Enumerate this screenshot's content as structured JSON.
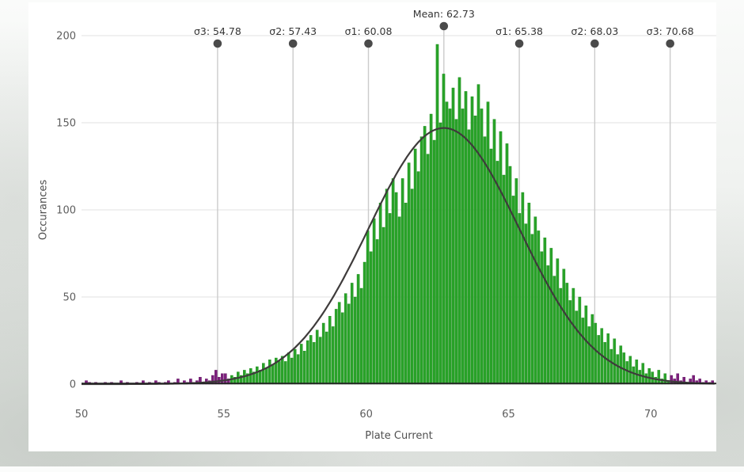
{
  "chart_data": {
    "type": "bar",
    "subtype": "histogram-with-gaussian-fit",
    "title": "",
    "xlabel": "Plate Current",
    "ylabel": "Occurances",
    "xlim": [
      50,
      72.3
    ],
    "ylim": [
      0,
      200
    ],
    "x_ticks": [
      50,
      55,
      60,
      65,
      70
    ],
    "y_ticks": [
      0,
      50,
      100,
      150,
      200
    ],
    "grid": "horizontal",
    "legend": "none",
    "histogram": {
      "start": 50.0,
      "bin_width": 0.11111,
      "bar_color": "#29a329",
      "bar_edge_color": "#1b8a1b",
      "outlier_color": "#7d1f7d",
      "outlier_edge_color": "#5e145e",
      "outlier_below": 55.2,
      "outlier_above": 70.7,
      "counts": [
        0,
        2,
        1,
        0,
        1,
        0,
        0,
        1,
        0,
        1,
        0,
        0,
        2,
        0,
        1,
        0,
        0,
        1,
        0,
        2,
        0,
        1,
        0,
        2,
        1,
        0,
        1,
        2,
        0,
        1,
        3,
        0,
        2,
        1,
        3,
        1,
        2,
        4,
        1,
        3,
        2,
        5,
        8,
        4,
        6,
        6,
        3,
        5,
        4,
        7,
        5,
        8,
        6,
        9,
        7,
        10,
        8,
        12,
        9,
        14,
        11,
        15,
        13,
        16,
        13,
        18,
        15,
        20,
        17,
        23,
        19,
        25,
        28,
        24,
        31,
        27,
        35,
        30,
        39,
        33,
        43,
        47,
        41,
        52,
        46,
        58,
        50,
        63,
        55,
        70,
        88,
        76,
        95,
        83,
        104,
        90,
        112,
        98,
        118,
        110,
        96,
        118,
        104,
        127,
        112,
        135,
        122,
        142,
        148,
        132,
        155,
        140,
        195,
        150,
        178,
        162,
        158,
        170,
        152,
        176,
        158,
        168,
        146,
        165,
        154,
        172,
        158,
        142,
        162,
        135,
        152,
        128,
        145,
        120,
        138,
        125,
        108,
        118,
        98,
        110,
        92,
        104,
        86,
        96,
        88,
        76,
        84,
        68,
        78,
        62,
        72,
        55,
        66,
        58,
        48,
        55,
        42,
        50,
        38,
        45,
        33,
        40,
        35,
        28,
        32,
        24,
        29,
        20,
        26,
        17,
        22,
        18,
        13,
        16,
        10,
        14,
        8,
        12,
        6,
        9,
        7,
        4,
        8,
        3,
        6,
        2,
        5,
        3,
        6,
        2,
        4,
        1,
        3,
        5,
        2,
        3,
        1,
        2,
        1,
        2
      ]
    },
    "fit_curve": {
      "shape": "gaussian",
      "mean": 62.73,
      "sigma": 2.65,
      "peak": 147,
      "color": "#3e3b3b"
    },
    "markers": [
      {
        "id": "sigma3-left",
        "label": "σ3: 54.78",
        "x": 54.78,
        "elevated": false
      },
      {
        "id": "sigma2-left",
        "label": "σ2: 57.43",
        "x": 57.43,
        "elevated": false
      },
      {
        "id": "sigma1-left",
        "label": "σ1: 60.08",
        "x": 60.08,
        "elevated": false
      },
      {
        "id": "mean",
        "label": "Mean: 62.73",
        "x": 62.73,
        "elevated": true
      },
      {
        "id": "sigma1-right",
        "label": "σ1: 65.38",
        "x": 65.38,
        "elevated": false
      },
      {
        "id": "sigma2-right",
        "label": "σ2: 68.03",
        "x": 68.03,
        "elevated": false
      },
      {
        "id": "sigma3-right",
        "label": "σ3: 70.68",
        "x": 70.68,
        "elevated": false
      }
    ],
    "marker_dot_color": "#4a4a4a",
    "marker_line_color": "#cbcbcb",
    "gridline_color": "#e7e7e7",
    "axis_line_color": "#242424"
  }
}
